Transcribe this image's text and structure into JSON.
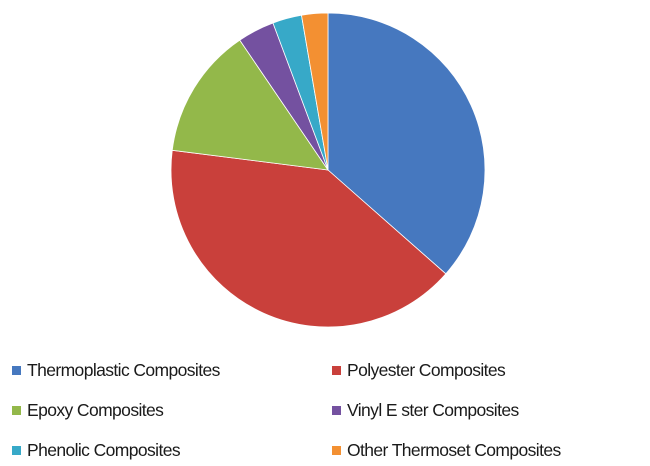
{
  "chart_data": {
    "type": "pie",
    "title": "",
    "start": "12 o'clock, clockwise",
    "legend_position": "bottom",
    "slices": [
      {
        "label": "Thermoplastic Composites",
        "value": 36.5,
        "color": "#4678bf"
      },
      {
        "label": "Polyester Composites",
        "value": 40.5,
        "color": "#c9403b"
      },
      {
        "label": "Epoxy Composites",
        "value": 13.5,
        "color": "#93b84a"
      },
      {
        "label": "Vinyl E ster Composites",
        "value": 3.8,
        "color": "#7451a0"
      },
      {
        "label": "Phenolic Composites",
        "value": 3.0,
        "color": "#37a9c8"
      },
      {
        "label": "Other Thermoset Composites",
        "value": 2.7,
        "color": "#f39032"
      }
    ]
  }
}
